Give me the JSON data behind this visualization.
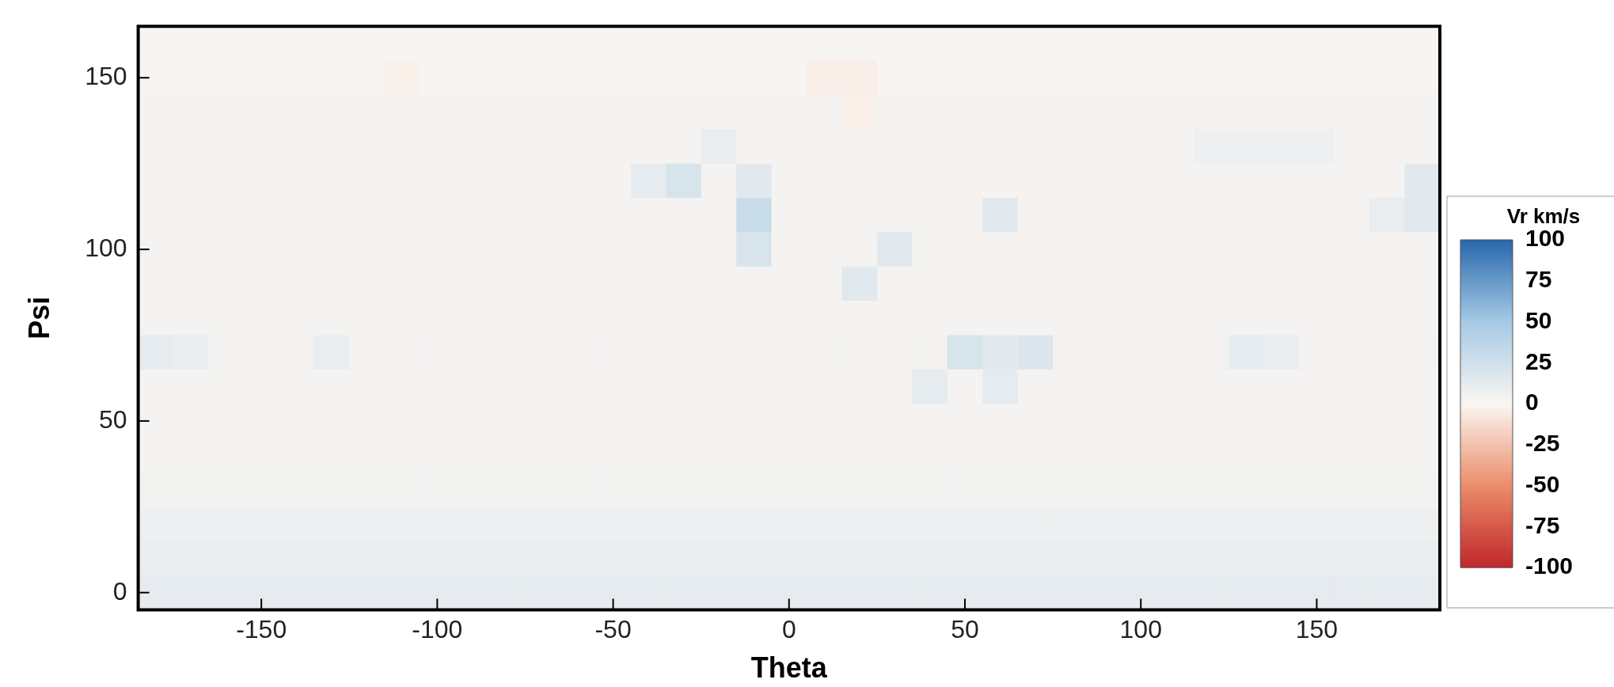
{
  "chart_data": {
    "type": "heatmap",
    "xlabel": "Theta",
    "ylabel": "Psi",
    "clabel": "Vr km/s",
    "categories": [
      null,
      null,
      null,
      "-150",
      null,
      null,
      null,
      null,
      "-100",
      null,
      null,
      null,
      null,
      "-50",
      null,
      null,
      null,
      null,
      "0",
      null,
      null,
      null,
      null,
      "50",
      null,
      null,
      null,
      null,
      "100",
      null,
      null,
      null,
      null,
      "150",
      null,
      null,
      null
    ],
    "y_categories": [
      null,
      "150",
      null,
      null,
      null,
      null,
      "100",
      null,
      null,
      null,
      null,
      "50",
      null,
      null,
      null,
      null,
      "0"
    ],
    "cells": [
      [
        2,
        2,
        2,
        2,
        2,
        2,
        2,
        2,
        2,
        2,
        2,
        2,
        2,
        2,
        2,
        2,
        2,
        2,
        2,
        2,
        2,
        2,
        2,
        2,
        2,
        2,
        2,
        2,
        2,
        2,
        2,
        2,
        2,
        2,
        2,
        2,
        2
      ],
      [
        2,
        2,
        2,
        2,
        2,
        2,
        2,
        -3,
        2,
        2,
        2,
        2,
        2,
        2,
        2,
        2,
        2,
        2,
        2,
        -4,
        -4,
        2,
        2,
        2,
        2,
        2,
        2,
        2,
        2,
        2,
        2,
        2,
        2,
        2,
        2,
        2,
        2
      ],
      [
        3,
        3,
        3,
        3,
        3,
        3,
        3,
        3,
        3,
        3,
        3,
        3,
        3,
        3,
        3,
        3,
        3,
        3,
        3,
        3,
        -3,
        3,
        3,
        3,
        3,
        3,
        3,
        3,
        3,
        3,
        3,
        3,
        3,
        3,
        3,
        3,
        3
      ],
      [
        3,
        3,
        3,
        3,
        3,
        3,
        3,
        3,
        3,
        3,
        3,
        3,
        3,
        3,
        3,
        3,
        10,
        3,
        3,
        3,
        3,
        3,
        3,
        3,
        3,
        3,
        3,
        3,
        3,
        3,
        8,
        8,
        8,
        8,
        3,
        3,
        3
      ],
      [
        3,
        3,
        3,
        3,
        3,
        3,
        3,
        3,
        3,
        3,
        3,
        3,
        3,
        3,
        12,
        20,
        3,
        15,
        3,
        3,
        3,
        3,
        3,
        3,
        3,
        3,
        3,
        3,
        3,
        3,
        3,
        3,
        3,
        3,
        3,
        3,
        15
      ],
      [
        3,
        3,
        3,
        3,
        3,
        3,
        3,
        3,
        3,
        3,
        3,
        3,
        3,
        3,
        3,
        3,
        3,
        30,
        3,
        3,
        3,
        3,
        3,
        3,
        15,
        3,
        3,
        3,
        3,
        3,
        3,
        3,
        3,
        3,
        3,
        10,
        15
      ],
      [
        3,
        3,
        3,
        3,
        3,
        3,
        3,
        3,
        3,
        3,
        3,
        3,
        3,
        3,
        3,
        3,
        3,
        20,
        3,
        3,
        3,
        15,
        3,
        3,
        3,
        3,
        3,
        3,
        3,
        3,
        3,
        3,
        3,
        3,
        3,
        3,
        3
      ],
      [
        3,
        3,
        3,
        3,
        3,
        3,
        3,
        3,
        3,
        3,
        3,
        3,
        3,
        3,
        3,
        3,
        3,
        3,
        3,
        3,
        15,
        3,
        3,
        3,
        3,
        3,
        3,
        3,
        3,
        3,
        3,
        3,
        3,
        3,
        3,
        3,
        3
      ],
      [
        3,
        3,
        3,
        3,
        3,
        3,
        3,
        3,
        3,
        3,
        3,
        3,
        3,
        3,
        3,
        3,
        3,
        3,
        3,
        3,
        3,
        3,
        3,
        3,
        3,
        3,
        3,
        3,
        3,
        3,
        3,
        3,
        3,
        3,
        3,
        3,
        3
      ],
      [
        12,
        10,
        4,
        4,
        4,
        10,
        4,
        4,
        4,
        4,
        4,
        4,
        4,
        4,
        4,
        4,
        4,
        4,
        4,
        4,
        4,
        4,
        4,
        20,
        15,
        18,
        4,
        4,
        4,
        4,
        4,
        12,
        10,
        4,
        4,
        4,
        4
      ],
      [
        3,
        3,
        3,
        3,
        3,
        3,
        3,
        3,
        3,
        3,
        3,
        3,
        3,
        3,
        3,
        3,
        3,
        3,
        3,
        3,
        3,
        3,
        12,
        3,
        12,
        3,
        3,
        3,
        3,
        3,
        3,
        3,
        3,
        3,
        3,
        3,
        3
      ],
      [
        3,
        3,
        3,
        3,
        3,
        3,
        3,
        3,
        3,
        3,
        3,
        3,
        3,
        3,
        3,
        3,
        3,
        3,
        3,
        3,
        3,
        3,
        3,
        3,
        3,
        3,
        3,
        3,
        3,
        3,
        3,
        3,
        3,
        3,
        3,
        3,
        3
      ],
      [
        3,
        3,
        3,
        3,
        3,
        3,
        3,
        3,
        3,
        3,
        3,
        3,
        3,
        3,
        3,
        3,
        3,
        3,
        3,
        3,
        3,
        3,
        3,
        3,
        3,
        3,
        3,
        3,
        3,
        3,
        3,
        3,
        3,
        3,
        3,
        3,
        3
      ],
      [
        5,
        5,
        5,
        5,
        5,
        5,
        5,
        5,
        5,
        5,
        5,
        5,
        5,
        5,
        5,
        5,
        5,
        5,
        5,
        5,
        5,
        5,
        5,
        5,
        5,
        5,
        5,
        5,
        5,
        5,
        5,
        5,
        5,
        5,
        5,
        5,
        5
      ],
      [
        8,
        8,
        8,
        8,
        8,
        8,
        8,
        8,
        8,
        8,
        8,
        8,
        8,
        8,
        8,
        8,
        8,
        8,
        8,
        8,
        8,
        8,
        8,
        8,
        8,
        8,
        8,
        8,
        8,
        8,
        8,
        8,
        8,
        8,
        8,
        8,
        8
      ],
      [
        10,
        10,
        10,
        10,
        10,
        10,
        10,
        10,
        10,
        10,
        10,
        10,
        10,
        10,
        10,
        10,
        10,
        10,
        10,
        10,
        10,
        10,
        10,
        10,
        10,
        10,
        10,
        10,
        10,
        10,
        10,
        10,
        10,
        10,
        10,
        10,
        10
      ],
      [
        12,
        12,
        12,
        12,
        12,
        12,
        12,
        12,
        12,
        12,
        12,
        12,
        12,
        12,
        12,
        12,
        12,
        12,
        12,
        12,
        12,
        12,
        12,
        12,
        12,
        12,
        12,
        12,
        12,
        12,
        12,
        12,
        12,
        12,
        12,
        12,
        12
      ]
    ],
    "clim": [
      -100,
      100
    ],
    "cticks": [
      100,
      75,
      50,
      25,
      0,
      -25,
      -50,
      -75,
      -100
    ]
  }
}
